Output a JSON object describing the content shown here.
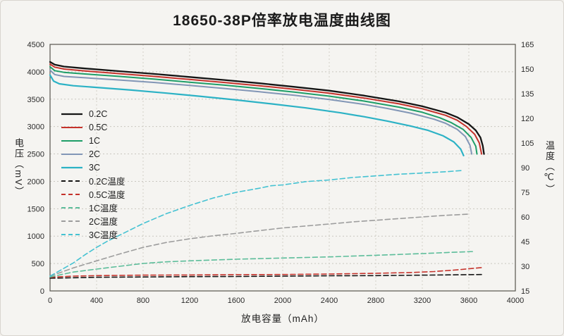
{
  "chart_data": {
    "type": "line",
    "title": "18650-38P倍率放电温度曲线图",
    "xlabel": "放电容量（mAh）",
    "ylabel_left": "电压（mV）",
    "ylabel_right": "温度（℃）",
    "xlim": [
      0,
      4000
    ],
    "xticks": [
      0,
      400,
      800,
      1200,
      1600,
      2000,
      2400,
      2800,
      3200,
      3600,
      4000
    ],
    "ylim_left": [
      0,
      4500
    ],
    "yticks_left": [
      0,
      500,
      1000,
      1500,
      2000,
      2500,
      3000,
      3500,
      4000,
      4500
    ],
    "ylim_right": [
      15,
      165
    ],
    "yticks_right": [
      15,
      30,
      45,
      60,
      75,
      90,
      105,
      120,
      135,
      150,
      165
    ],
    "grid": true,
    "legend_position": "inside-left",
    "series": [
      {
        "name": "0.2C",
        "axis": "left",
        "style": "solid",
        "color": "#151515",
        "width": 2.3,
        "points": [
          [
            0,
            4180
          ],
          [
            40,
            4130
          ],
          [
            120,
            4095
          ],
          [
            300,
            4060
          ],
          [
            600,
            4010
          ],
          [
            900,
            3960
          ],
          [
            1200,
            3905
          ],
          [
            1500,
            3850
          ],
          [
            1800,
            3790
          ],
          [
            2100,
            3725
          ],
          [
            2400,
            3655
          ],
          [
            2700,
            3565
          ],
          [
            3000,
            3460
          ],
          [
            3200,
            3370
          ],
          [
            3400,
            3255
          ],
          [
            3500,
            3170
          ],
          [
            3600,
            3045
          ],
          [
            3660,
            2930
          ],
          [
            3700,
            2800
          ],
          [
            3720,
            2650
          ],
          [
            3730,
            2500
          ]
        ]
      },
      {
        "name": "0.5C",
        "axis": "left",
        "style": "solid",
        "color": "#c5322b",
        "width": 2,
        "points": [
          [
            0,
            4140
          ],
          [
            40,
            4085
          ],
          [
            120,
            4050
          ],
          [
            300,
            4015
          ],
          [
            600,
            3965
          ],
          [
            900,
            3915
          ],
          [
            1200,
            3860
          ],
          [
            1500,
            3805
          ],
          [
            1800,
            3745
          ],
          [
            2100,
            3680
          ],
          [
            2400,
            3610
          ],
          [
            2700,
            3520
          ],
          [
            3000,
            3415
          ],
          [
            3200,
            3325
          ],
          [
            3400,
            3205
          ],
          [
            3500,
            3115
          ],
          [
            3580,
            3000
          ],
          [
            3650,
            2860
          ],
          [
            3690,
            2700
          ],
          [
            3710,
            2500
          ]
        ]
      },
      {
        "name": "1C",
        "axis": "left",
        "style": "solid",
        "color": "#1e9e68",
        "width": 2,
        "points": [
          [
            0,
            4090
          ],
          [
            40,
            4020
          ],
          [
            120,
            3990
          ],
          [
            300,
            3960
          ],
          [
            600,
            3915
          ],
          [
            900,
            3865
          ],
          [
            1200,
            3810
          ],
          [
            1500,
            3755
          ],
          [
            1800,
            3695
          ],
          [
            2100,
            3630
          ],
          [
            2400,
            3555
          ],
          [
            2700,
            3465
          ],
          [
            3000,
            3355
          ],
          [
            3200,
            3260
          ],
          [
            3350,
            3160
          ],
          [
            3450,
            3070
          ],
          [
            3550,
            2950
          ],
          [
            3620,
            2800
          ],
          [
            3660,
            2640
          ],
          [
            3670,
            2500
          ]
        ]
      },
      {
        "name": "2C",
        "axis": "left",
        "style": "solid",
        "color": "#8296b6",
        "width": 2,
        "points": [
          [
            0,
            4030
          ],
          [
            40,
            3950
          ],
          [
            120,
            3915
          ],
          [
            300,
            3890
          ],
          [
            600,
            3850
          ],
          [
            900,
            3805
          ],
          [
            1200,
            3750
          ],
          [
            1500,
            3695
          ],
          [
            1800,
            3635
          ],
          [
            2100,
            3570
          ],
          [
            2400,
            3495
          ],
          [
            2700,
            3405
          ],
          [
            2900,
            3330
          ],
          [
            3100,
            3245
          ],
          [
            3300,
            3135
          ],
          [
            3400,
            3060
          ],
          [
            3500,
            2950
          ],
          [
            3570,
            2820
          ],
          [
            3610,
            2660
          ],
          [
            3625,
            2500
          ]
        ]
      },
      {
        "name": "3C",
        "axis": "left",
        "style": "solid",
        "color": "#2cb2c5",
        "width": 2.2,
        "points": [
          [
            0,
            3940
          ],
          [
            30,
            3830
          ],
          [
            80,
            3780
          ],
          [
            200,
            3745
          ],
          [
            400,
            3715
          ],
          [
            700,
            3665
          ],
          [
            1000,
            3610
          ],
          [
            1300,
            3550
          ],
          [
            1600,
            3485
          ],
          [
            1900,
            3415
          ],
          [
            2200,
            3340
          ],
          [
            2500,
            3250
          ],
          [
            2700,
            3180
          ],
          [
            2900,
            3100
          ],
          [
            3100,
            3010
          ],
          [
            3250,
            2930
          ],
          [
            3380,
            2830
          ],
          [
            3470,
            2720
          ],
          [
            3530,
            2590
          ],
          [
            3555,
            2470
          ]
        ]
      },
      {
        "name": "0.2C温度",
        "axis": "right",
        "style": "dashed",
        "color": "#151515",
        "width": 1.6,
        "points": [
          [
            0,
            22.7
          ],
          [
            400,
            23.3
          ],
          [
            800,
            23.5
          ],
          [
            1200,
            23.7
          ],
          [
            1600,
            23.8
          ],
          [
            2000,
            24
          ],
          [
            2400,
            24.2
          ],
          [
            2800,
            24.3
          ],
          [
            3200,
            24.6
          ],
          [
            3500,
            24.8
          ],
          [
            3720,
            25
          ]
        ]
      },
      {
        "name": "0.5C温度",
        "axis": "right",
        "style": "dashed",
        "color": "#c5322b",
        "width": 1.6,
        "points": [
          [
            0,
            23.3
          ],
          [
            200,
            24
          ],
          [
            400,
            24.3
          ],
          [
            800,
            24.6
          ],
          [
            1200,
            24.7
          ],
          [
            1600,
            24.9
          ],
          [
            2000,
            25
          ],
          [
            2400,
            25.3
          ],
          [
            2800,
            25.7
          ],
          [
            3100,
            26.2
          ],
          [
            3300,
            26.8
          ],
          [
            3500,
            27.8
          ],
          [
            3650,
            28.8
          ],
          [
            3710,
            29.2
          ]
        ]
      },
      {
        "name": "1C温度",
        "axis": "right",
        "style": "dashed",
        "color": "#5cbd9a",
        "width": 1.6,
        "points": [
          [
            0,
            23.5
          ],
          [
            100,
            25
          ],
          [
            200,
            26.5
          ],
          [
            400,
            28.3
          ],
          [
            600,
            30
          ],
          [
            800,
            31.7
          ],
          [
            1000,
            32.7
          ],
          [
            1200,
            33.3
          ],
          [
            1600,
            34.3
          ],
          [
            2000,
            35
          ],
          [
            2400,
            35.7
          ],
          [
            2800,
            36.7
          ],
          [
            3200,
            37.7
          ],
          [
            3450,
            38.5
          ],
          [
            3650,
            39
          ]
        ]
      },
      {
        "name": "2C温度",
        "axis": "right",
        "style": "dashed",
        "color": "#9d9d9d",
        "width": 1.6,
        "points": [
          [
            0,
            24
          ],
          [
            100,
            26.5
          ],
          [
            200,
            29
          ],
          [
            400,
            33.3
          ],
          [
            600,
            37.5
          ],
          [
            800,
            41.5
          ],
          [
            1000,
            44.5
          ],
          [
            1200,
            46.7
          ],
          [
            1400,
            48.5
          ],
          [
            1600,
            50
          ],
          [
            1800,
            51.7
          ],
          [
            2000,
            53.3
          ],
          [
            2200,
            54.5
          ],
          [
            2400,
            55.7
          ],
          [
            2600,
            57
          ],
          [
            2800,
            58
          ],
          [
            3000,
            59
          ],
          [
            3200,
            60
          ],
          [
            3400,
            61
          ],
          [
            3600,
            61.7
          ]
        ]
      },
      {
        "name": "3C温度",
        "axis": "right",
        "style": "dashed",
        "color": "#45c2d2",
        "width": 1.6,
        "points": [
          [
            0,
            24
          ],
          [
            100,
            28
          ],
          [
            200,
            32
          ],
          [
            300,
            37
          ],
          [
            400,
            41.5
          ],
          [
            500,
            45.5
          ],
          [
            600,
            49
          ],
          [
            800,
            56
          ],
          [
            1000,
            62
          ],
          [
            1200,
            67
          ],
          [
            1400,
            71.5
          ],
          [
            1600,
            75
          ],
          [
            1800,
            77.5
          ],
          [
            1900,
            79
          ],
          [
            2000,
            79.5
          ],
          [
            2100,
            80.5
          ],
          [
            2200,
            81.5
          ],
          [
            2400,
            82.5
          ],
          [
            2600,
            84
          ],
          [
            2800,
            85
          ],
          [
            3000,
            86
          ],
          [
            3200,
            86.7
          ],
          [
            3400,
            87.5
          ],
          [
            3550,
            88.3
          ]
        ]
      }
    ]
  }
}
